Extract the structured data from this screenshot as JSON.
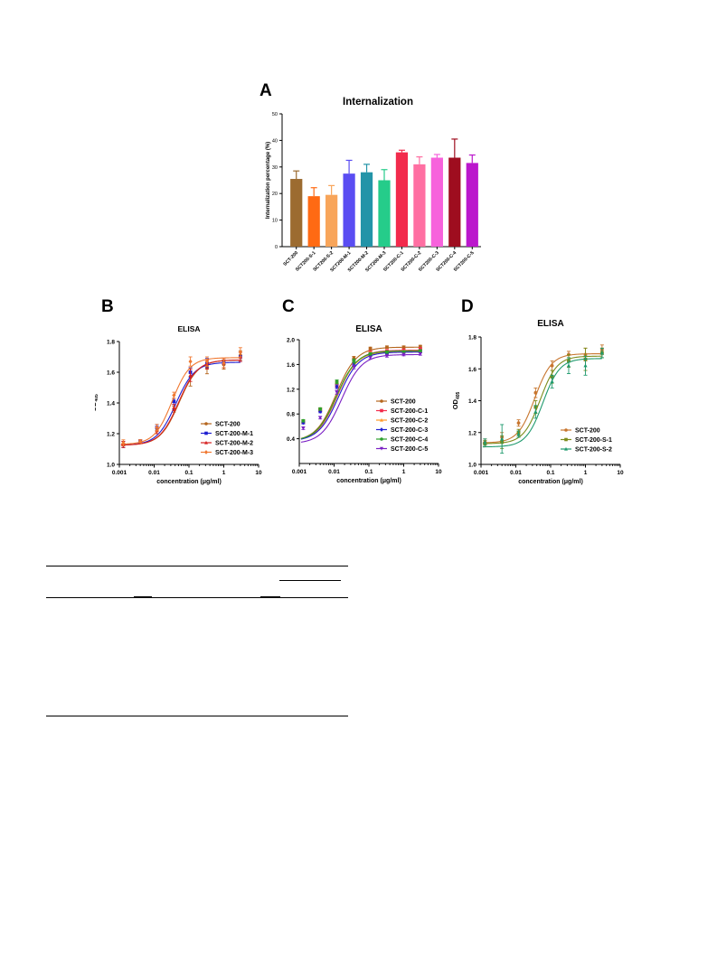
{
  "colors": {
    "SCT-200": "#b5651d",
    "M-1": "#1f1fd1",
    "M-2": "#d62020",
    "M-3": "#f07830"
  },
  "chart_data": [
    {
      "panel": "A",
      "type": "bar",
      "title": "Internalization",
      "ylabel": "Internalization percentage (%)",
      "xlabel": "",
      "ylim": [
        0,
        50
      ],
      "yticks": [
        0,
        10,
        20,
        30,
        40,
        50
      ],
      "categories": [
        "SCT-200",
        "SCT200-S-1",
        "SCT200-S-2",
        "SCT200-M-1",
        "SCT200-M-2",
        "SCT200-M-3",
        "SCT200-C-1",
        "SCT200-C-2",
        "SCT200-C-3",
        "SCT200-C-4",
        "SCT200-C-5"
      ],
      "values": [
        25.5,
        19.0,
        19.5,
        27.5,
        28.0,
        25.0,
        35.5,
        31.0,
        33.5,
        33.5,
        31.5
      ],
      "errors": [
        3.0,
        3.2,
        3.5,
        5.0,
        3.0,
        4.0,
        0.8,
        2.8,
        1.2,
        7.0,
        3.0
      ],
      "bar_colors": [
        "#9c6b30",
        "#ff6a13",
        "#f8a55a",
        "#5a4df2",
        "#2394a8",
        "#25cc8a",
        "#f22b4c",
        "#ff6fa2",
        "#f762dc",
        "#9e0d1f",
        "#bb17cc"
      ],
      "grid": false
    },
    {
      "panel": "B",
      "type": "line",
      "title": "ELISA",
      "xlabel": "concentration (μg/ml)",
      "ylabel": "OD",
      "ylabel_sub": "405",
      "xscale": "log",
      "xlim": [
        0.001,
        10
      ],
      "xticks": [
        "0.001",
        "0.01",
        "0.1",
        "1",
        "10"
      ],
      "ylim": [
        1.0,
        1.8
      ],
      "yticks": [
        "1.0",
        "1.2",
        "1.4",
        "1.6",
        "1.8"
      ],
      "legend": "bottom-right",
      "x": [
        0.0013,
        0.004,
        0.012,
        0.037,
        0.11,
        0.33,
        1.0,
        3.0
      ],
      "series": [
        {
          "name": "SCT-200",
          "color": "#b5651d",
          "marker": "circle",
          "ec50": 0.052,
          "top": 1.68,
          "bottom": 1.125,
          "hill": 1.6,
          "values": [
            1.13,
            1.15,
            1.22,
            1.36,
            1.57,
            1.63,
            1.65,
            1.71
          ],
          "errors": [
            0.02,
            0.01,
            0.02,
            0.02,
            0.06,
            0.04,
            0.03,
            0.03
          ]
        },
        {
          "name": "SCT-200-M-1",
          "color": "#1f1fd1",
          "marker": "square",
          "ec50": 0.042,
          "top": 1.665,
          "bottom": 1.125,
          "hill": 1.6,
          "values": [
            1.13,
            1.15,
            1.24,
            1.41,
            1.6,
            1.66,
            1.66,
            1.7
          ],
          "errors": [
            0.02,
            0.01,
            0.02,
            0.02,
            0.03,
            0.03,
            0.03,
            0.03
          ]
        },
        {
          "name": "SCT-200-M-2",
          "color": "#d62020",
          "marker": "triangle",
          "ec50": 0.05,
          "top": 1.68,
          "bottom": 1.125,
          "hill": 1.6,
          "values": [
            1.13,
            1.15,
            1.22,
            1.37,
            1.58,
            1.65,
            1.66,
            1.7
          ],
          "errors": [
            0.02,
            0.01,
            0.02,
            0.02,
            0.04,
            0.03,
            0.03,
            0.03
          ]
        },
        {
          "name": "SCT-200-M-3",
          "color": "#f07830",
          "marker": "diamond",
          "ec50": 0.033,
          "top": 1.695,
          "bottom": 1.13,
          "hill": 1.7,
          "values": [
            1.14,
            1.15,
            1.24,
            1.45,
            1.67,
            1.67,
            1.66,
            1.73
          ],
          "errors": [
            0.02,
            0.01,
            0.02,
            0.02,
            0.03,
            0.03,
            0.03,
            0.03
          ]
        }
      ]
    },
    {
      "panel": "C",
      "type": "line",
      "title": "ELISA",
      "xlabel": "concentration (μg/ml)",
      "ylabel": "",
      "xscale": "log",
      "xlim": [
        0.001,
        10
      ],
      "xticks": [
        "0.001",
        "0.01",
        "0.1",
        "1",
        "10"
      ],
      "ylim": [
        0.0,
        2.0
      ],
      "yticks": [
        "0.4",
        "0.8",
        "1.2",
        "1.6",
        "2.0"
      ],
      "legend": "bottom-right",
      "x": [
        0.0013,
        0.004,
        0.012,
        0.037,
        0.11,
        0.33,
        1.0,
        3.0
      ],
      "series": [
        {
          "name": "SCT-200",
          "color": "#b5651d",
          "marker": "circle",
          "ec50": 0.0115,
          "top": 1.88,
          "bottom": 0.36,
          "hill": 1.5,
          "values": [
            0.68,
            0.88,
            1.3,
            1.7,
            1.86,
            1.88,
            1.88,
            1.89
          ],
          "errors": [
            0.02,
            0.02,
            0.03,
            0.03,
            0.02,
            0.02,
            0.02,
            0.02
          ]
        },
        {
          "name": "SCT-200-C-1",
          "color": "#f22b4c",
          "marker": "square",
          "ec50": 0.0125,
          "top": 1.83,
          "bottom": 0.36,
          "hill": 1.5,
          "values": [
            0.67,
            0.86,
            1.26,
            1.65,
            1.8,
            1.82,
            1.83,
            1.85
          ],
          "errors": [
            0.02,
            0.02,
            0.03,
            0.03,
            0.02,
            0.02,
            0.02,
            0.02
          ]
        },
        {
          "name": "SCT-200-C-2",
          "color": "#ff9a2a",
          "marker": "triangle",
          "ec50": 0.012,
          "top": 1.81,
          "bottom": 0.36,
          "hill": 1.5,
          "values": [
            0.68,
            0.87,
            1.27,
            1.64,
            1.78,
            1.8,
            1.81,
            1.82
          ],
          "errors": [
            0.02,
            0.02,
            0.03,
            0.03,
            0.02,
            0.02,
            0.02,
            0.02
          ]
        },
        {
          "name": "SCT-200-C-3",
          "color": "#1f1fd1",
          "marker": "diamond",
          "ec50": 0.0135,
          "top": 1.8,
          "bottom": 0.36,
          "hill": 1.5,
          "values": [
            0.66,
            0.84,
            1.24,
            1.6,
            1.76,
            1.79,
            1.8,
            1.81
          ],
          "errors": [
            0.02,
            0.02,
            0.03,
            0.03,
            0.02,
            0.02,
            0.02,
            0.02
          ]
        },
        {
          "name": "SCT-200-C-4",
          "color": "#2ca02c",
          "marker": "circle",
          "ec50": 0.0118,
          "top": 1.82,
          "bottom": 0.36,
          "hill": 1.5,
          "values": [
            0.69,
            0.88,
            1.32,
            1.66,
            1.77,
            1.8,
            1.8,
            1.82
          ],
          "errors": [
            0.02,
            0.02,
            0.03,
            0.03,
            0.02,
            0.02,
            0.02,
            0.02
          ]
        },
        {
          "name": "SCT-200-C-5",
          "color": "#7a1fc4",
          "marker": "star",
          "ec50": 0.0165,
          "top": 1.76,
          "bottom": 0.32,
          "hill": 1.5,
          "values": [
            0.57,
            0.74,
            1.15,
            1.56,
            1.71,
            1.74,
            1.76,
            1.77
          ],
          "errors": [
            0.02,
            0.02,
            0.03,
            0.03,
            0.02,
            0.02,
            0.02,
            0.02
          ]
        }
      ]
    },
    {
      "panel": "D",
      "type": "line",
      "title": "ELISA",
      "xlabel": "concentration (μg/ml)",
      "ylabel": "OD",
      "ylabel_sub": "405",
      "xscale": "log",
      "xlim": [
        0.001,
        10
      ],
      "xticks": [
        "0.001",
        "0.01",
        "0.1",
        "1",
        "10"
      ],
      "ylim": [
        1.0,
        1.8
      ],
      "yticks": [
        "1.0",
        "1.2",
        "1.4",
        "1.6",
        "1.8"
      ],
      "legend": "bottom-right",
      "x": [
        0.0013,
        0.004,
        0.012,
        0.037,
        0.11,
        0.33,
        1.0,
        3.0
      ],
      "series": [
        {
          "name": "SCT-200",
          "color": "#c8762f",
          "marker": "circle",
          "ec50": 0.035,
          "top": 1.695,
          "bottom": 1.135,
          "hill": 1.8,
          "values": [
            1.14,
            1.17,
            1.26,
            1.45,
            1.62,
            1.69,
            1.69,
            1.72
          ],
          "errors": [
            0.02,
            0.03,
            0.02,
            0.03,
            0.03,
            0.02,
            0.04,
            0.03
          ]
        },
        {
          "name": "SCT-200-S-1",
          "color": "#7d8c1c",
          "marker": "square",
          "ec50": 0.05,
          "top": 1.68,
          "bottom": 1.13,
          "hill": 1.8,
          "values": [
            1.13,
            1.14,
            1.2,
            1.36,
            1.55,
            1.65,
            1.66,
            1.7
          ],
          "errors": [
            0.02,
            0.04,
            0.02,
            0.04,
            0.04,
            0.04,
            0.07,
            0.03
          ]
        },
        {
          "name": "SCT-200-S-2",
          "color": "#1f9a6e",
          "marker": "triangle",
          "ec50": 0.06,
          "top": 1.665,
          "bottom": 1.11,
          "hill": 1.8,
          "values": [
            1.14,
            1.16,
            1.19,
            1.33,
            1.52,
            1.62,
            1.62,
            1.7
          ],
          "errors": [
            0.02,
            0.09,
            0.02,
            0.04,
            0.04,
            0.05,
            0.06,
            0.03
          ]
        }
      ]
    }
  ]
}
